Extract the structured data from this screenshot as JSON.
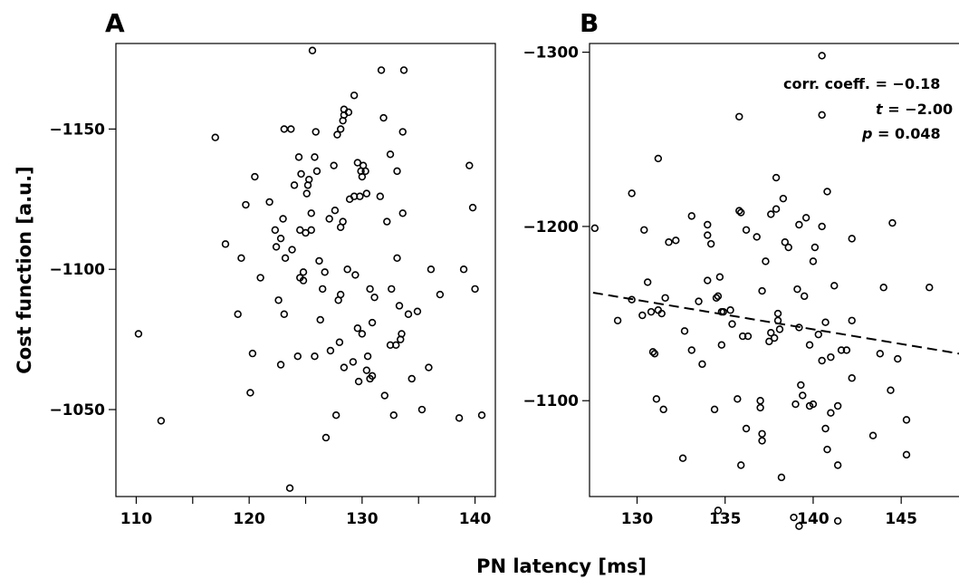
{
  "figure": {
    "xlabel": "PN latency [ms]",
    "ylabel": "Cost function [a.u.]"
  },
  "chart_data": [
    {
      "panel": "A",
      "type": "scatter",
      "xlabel": "PN latency [ms]",
      "ylabel": "Cost function [a.u.]",
      "xlim": [
        108.2,
        141.8
      ],
      "ylim": [
        -1019.0,
        -1180.5
      ],
      "xticks": [
        110,
        115,
        120,
        125,
        130,
        135,
        140
      ],
      "xtick_labels": [
        "110",
        "",
        "120",
        "",
        "130",
        "",
        "140"
      ],
      "yticks": [
        -1150,
        -1100,
        -1050
      ],
      "ytick_labels": [
        "−1150",
        "−1100",
        "−1050"
      ],
      "points": [
        [
          110.2,
          -1077
        ],
        [
          112.2,
          -1046
        ],
        [
          117.0,
          -1147
        ],
        [
          117.9,
          -1109
        ],
        [
          119.0,
          -1084
        ],
        [
          119.3,
          -1104
        ],
        [
          119.7,
          -1123
        ],
        [
          120.1,
          -1056
        ],
        [
          120.3,
          -1070
        ],
        [
          120.5,
          -1133
        ],
        [
          121.0,
          -1097
        ],
        [
          121.8,
          -1124
        ],
        [
          122.3,
          -1114
        ],
        [
          122.4,
          -1108
        ],
        [
          122.6,
          -1089
        ],
        [
          122.8,
          -1111
        ],
        [
          122.8,
          -1066
        ],
        [
          123.0,
          -1118
        ],
        [
          123.1,
          -1084
        ],
        [
          123.1,
          -1150
        ],
        [
          123.2,
          -1104
        ],
        [
          123.6,
          -1022
        ],
        [
          123.7,
          -1150
        ],
        [
          123.8,
          -1107
        ],
        [
          124.0,
          -1130
        ],
        [
          124.3,
          -1069
        ],
        [
          124.4,
          -1140
        ],
        [
          124.5,
          -1097
        ],
        [
          124.5,
          -1114
        ],
        [
          124.6,
          -1134
        ],
        [
          124.8,
          -1096
        ],
        [
          124.8,
          -1099
        ],
        [
          125.0,
          -1113
        ],
        [
          125.1,
          -1127
        ],
        [
          125.2,
          -1130
        ],
        [
          125.3,
          -1132
        ],
        [
          125.5,
          -1120
        ],
        [
          125.5,
          -1114
        ],
        [
          125.6,
          -1178
        ],
        [
          125.8,
          -1069
        ],
        [
          125.8,
          -1140
        ],
        [
          125.9,
          -1149
        ],
        [
          126.0,
          -1135
        ],
        [
          126.2,
          -1103
        ],
        [
          126.3,
          -1082
        ],
        [
          126.5,
          -1093
        ],
        [
          126.7,
          -1099
        ],
        [
          126.8,
          -1040
        ],
        [
          127.1,
          -1118
        ],
        [
          127.2,
          -1071
        ],
        [
          127.5,
          -1137
        ],
        [
          127.6,
          -1121
        ],
        [
          127.7,
          -1048
        ],
        [
          127.8,
          -1148
        ],
        [
          127.9,
          -1089
        ],
        [
          128.0,
          -1074
        ],
        [
          128.1,
          -1091
        ],
        [
          128.1,
          -1150
        ],
        [
          128.1,
          -1115
        ],
        [
          128.3,
          -1117
        ],
        [
          128.3,
          -1153
        ],
        [
          128.4,
          -1065
        ],
        [
          128.4,
          -1155
        ],
        [
          128.4,
          -1157
        ],
        [
          128.7,
          -1100
        ],
        [
          128.8,
          -1156
        ],
        [
          128.9,
          -1125
        ],
        [
          129.2,
          -1067
        ],
        [
          129.3,
          -1162
        ],
        [
          129.3,
          -1126
        ],
        [
          129.4,
          -1098
        ],
        [
          129.6,
          -1079
        ],
        [
          129.6,
          -1138
        ],
        [
          129.7,
          -1060
        ],
        [
          129.8,
          -1126
        ],
        [
          129.9,
          -1135
        ],
        [
          130.0,
          -1077
        ],
        [
          130.0,
          -1133
        ],
        [
          130.1,
          -1137
        ],
        [
          130.3,
          -1135
        ],
        [
          130.4,
          -1127
        ],
        [
          130.4,
          -1064
        ],
        [
          130.5,
          -1069
        ],
        [
          130.7,
          -1093
        ],
        [
          130.7,
          -1061
        ],
        [
          130.9,
          -1081
        ],
        [
          130.9,
          -1062
        ],
        [
          131.1,
          -1090
        ],
        [
          131.6,
          -1126
        ],
        [
          131.7,
          -1171
        ],
        [
          131.9,
          -1154
        ],
        [
          132.0,
          -1055
        ],
        [
          132.2,
          -1117
        ],
        [
          132.5,
          -1141
        ],
        [
          132.5,
          -1073
        ],
        [
          132.6,
          -1093
        ],
        [
          132.8,
          -1048
        ],
        [
          133.0,
          -1073
        ],
        [
          133.1,
          -1104
        ],
        [
          133.1,
          -1135
        ],
        [
          133.3,
          -1087
        ],
        [
          133.4,
          -1075
        ],
        [
          133.5,
          -1077
        ],
        [
          133.6,
          -1120
        ],
        [
          133.6,
          -1149
        ],
        [
          133.7,
          -1171
        ],
        [
          134.1,
          -1084
        ],
        [
          134.4,
          -1061
        ],
        [
          134.9,
          -1085
        ],
        [
          135.3,
          -1050
        ],
        [
          135.9,
          -1065
        ],
        [
          136.1,
          -1100
        ],
        [
          136.9,
          -1091
        ],
        [
          138.6,
          -1047
        ],
        [
          139.0,
          -1100
        ],
        [
          139.5,
          -1137
        ],
        [
          139.8,
          -1122
        ],
        [
          140.0,
          -1093
        ],
        [
          140.6,
          -1048
        ]
      ]
    },
    {
      "panel": "B",
      "type": "scatter",
      "xlabel": "PN latency [ms]",
      "ylabel": "",
      "xlim": [
        127.3,
        148.9
      ],
      "ylim": [
        -1045.0,
        -1305.0
      ],
      "xticks": [
        130,
        135,
        140,
        145
      ],
      "xtick_labels": [
        "130",
        "135",
        "140",
        "145"
      ],
      "yticks": [
        -1300,
        -1200,
        -1100
      ],
      "ytick_labels": [
        "−1300",
        "−1200",
        "−1100"
      ],
      "fit_line": {
        "x": [
          127.5,
          148.9
        ],
        "y": [
          -1162,
          -1126
        ]
      },
      "annotation": {
        "corr_label": "corr. coeff. = −0.18",
        "t_label": "t",
        "t_value": " = −2.00",
        "p_label": "p",
        "p_value": " = 0.048"
      },
      "points": [
        [
          127.6,
          -1199
        ],
        [
          128.9,
          -1146
        ],
        [
          129.7,
          -1219
        ],
        [
          129.7,
          -1158
        ],
        [
          130.3,
          -1149
        ],
        [
          130.4,
          -1198
        ],
        [
          130.6,
          -1168
        ],
        [
          130.8,
          -1151
        ],
        [
          130.9,
          -1128
        ],
        [
          131.0,
          -1127
        ],
        [
          131.1,
          -1101
        ],
        [
          131.2,
          -1152
        ],
        [
          131.2,
          -1239
        ],
        [
          131.4,
          -1150
        ],
        [
          131.5,
          -1095
        ],
        [
          131.6,
          -1159
        ],
        [
          131.8,
          -1191
        ],
        [
          132.2,
          -1192
        ],
        [
          132.6,
          -1067
        ],
        [
          132.7,
          -1140
        ],
        [
          133.1,
          -1206
        ],
        [
          133.1,
          -1129
        ],
        [
          133.5,
          -1157
        ],
        [
          133.7,
          -1121
        ],
        [
          134.0,
          -1169
        ],
        [
          134.0,
          -1195
        ],
        [
          134.0,
          -1201
        ],
        [
          134.2,
          -1190
        ],
        [
          134.4,
          -1095
        ],
        [
          134.5,
          -1159
        ],
        [
          134.6,
          -1160
        ],
        [
          134.6,
          -1037
        ],
        [
          134.7,
          -1171
        ],
        [
          134.8,
          -1151
        ],
        [
          134.8,
          -1132
        ],
        [
          134.9,
          -1151
        ],
        [
          135.3,
          -1152
        ],
        [
          135.4,
          -1144
        ],
        [
          135.7,
          -1101
        ],
        [
          135.8,
          -1209
        ],
        [
          135.8,
          -1263
        ],
        [
          135.9,
          -1208
        ],
        [
          135.9,
          -1063
        ],
        [
          136.0,
          -1137
        ],
        [
          136.2,
          -1084
        ],
        [
          136.3,
          -1137
        ],
        [
          136.2,
          -1198
        ],
        [
          136.8,
          -1194
        ],
        [
          137.0,
          -1100
        ],
        [
          137.0,
          -1096
        ],
        [
          137.1,
          -1077
        ],
        [
          137.1,
          -1081
        ],
        [
          137.1,
          -1163
        ],
        [
          137.3,
          -1180
        ],
        [
          137.5,
          -1134
        ],
        [
          137.6,
          -1207
        ],
        [
          137.6,
          -1139
        ],
        [
          137.8,
          -1136
        ],
        [
          137.9,
          -1228
        ],
        [
          137.9,
          -1210
        ],
        [
          138.0,
          -1150
        ],
        [
          138.0,
          -1146
        ],
        [
          138.1,
          -1141
        ],
        [
          138.2,
          -1056
        ],
        [
          138.3,
          -1216
        ],
        [
          138.4,
          -1191
        ],
        [
          138.6,
          -1188
        ],
        [
          138.9,
          -1033
        ],
        [
          139.0,
          -1098
        ],
        [
          139.1,
          -1164
        ],
        [
          139.2,
          -1028
        ],
        [
          139.2,
          -1201
        ],
        [
          139.2,
          -1142
        ],
        [
          139.3,
          -1109
        ],
        [
          139.4,
          -1103
        ],
        [
          139.5,
          -1160
        ],
        [
          139.6,
          -1205
        ],
        [
          139.8,
          -1132
        ],
        [
          139.8,
          -1097
        ],
        [
          140.0,
          -1098
        ],
        [
          140.0,
          -1180
        ],
        [
          140.1,
          -1188
        ],
        [
          140.3,
          -1138
        ],
        [
          140.5,
          -1200
        ],
        [
          140.5,
          -1264
        ],
        [
          140.5,
          -1298
        ],
        [
          140.5,
          -1123
        ],
        [
          140.7,
          -1145
        ],
        [
          140.7,
          -1084
        ],
        [
          140.8,
          -1072
        ],
        [
          140.8,
          -1220
        ],
        [
          141.0,
          -1093
        ],
        [
          141.0,
          -1125
        ],
        [
          141.2,
          -1166
        ],
        [
          141.4,
          -1097
        ],
        [
          141.4,
          -1063
        ],
        [
          141.4,
          -1031
        ],
        [
          141.6,
          -1129
        ],
        [
          141.9,
          -1129
        ],
        [
          142.2,
          -1146
        ],
        [
          142.2,
          -1193
        ],
        [
          142.2,
          -1113
        ],
        [
          143.4,
          -1080
        ],
        [
          143.8,
          -1127
        ],
        [
          144.0,
          -1165
        ],
        [
          144.4,
          -1106
        ],
        [
          144.5,
          -1202
        ],
        [
          144.8,
          -1124
        ],
        [
          145.3,
          -1089
        ],
        [
          145.3,
          -1069
        ],
        [
          146.6,
          -1165
        ],
        [
          148.9,
          -1155
        ]
      ]
    }
  ]
}
